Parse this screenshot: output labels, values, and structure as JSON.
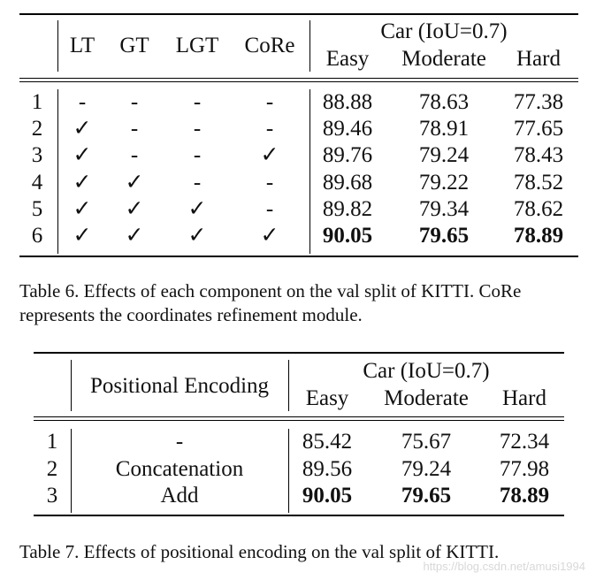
{
  "table6": {
    "headers": {
      "components": [
        "LT",
        "GT",
        "LGT",
        "CoRe"
      ],
      "group": "Car (IoU=0.7)",
      "metrics": [
        "Easy",
        "Moderate",
        "Hard"
      ]
    },
    "rows": [
      {
        "id": "1",
        "marks": [
          "-",
          "-",
          "-",
          "-"
        ],
        "values": [
          "88.88",
          "78.63",
          "77.38"
        ],
        "bold": false
      },
      {
        "id": "2",
        "marks": [
          "✓",
          "-",
          "-",
          "-"
        ],
        "values": [
          "89.46",
          "78.91",
          "77.65"
        ],
        "bold": false
      },
      {
        "id": "3",
        "marks": [
          "✓",
          "-",
          "-",
          "✓"
        ],
        "values": [
          "89.76",
          "79.24",
          "78.43"
        ],
        "bold": false
      },
      {
        "id": "4",
        "marks": [
          "✓",
          "✓",
          "-",
          "-"
        ],
        "values": [
          "89.68",
          "79.22",
          "78.52"
        ],
        "bold": false
      },
      {
        "id": "5",
        "marks": [
          "✓",
          "✓",
          "✓",
          "-"
        ],
        "values": [
          "89.82",
          "79.34",
          "78.62"
        ],
        "bold": false
      },
      {
        "id": "6",
        "marks": [
          "✓",
          "✓",
          "✓",
          "✓"
        ],
        "values": [
          "90.05",
          "79.65",
          "78.89"
        ],
        "bold": true
      }
    ],
    "caption": "Table 6. Effects of each component on the val split of KITTI. CoRe represents the coordinates refinement module."
  },
  "table7": {
    "headers": {
      "encoding": "Positional Encoding",
      "group": "Car (IoU=0.7)",
      "metrics": [
        "Easy",
        "Moderate",
        "Hard"
      ]
    },
    "rows": [
      {
        "id": "1",
        "encoding": "-",
        "values": [
          "85.42",
          "75.67",
          "72.34"
        ],
        "bold": false
      },
      {
        "id": "2",
        "encoding": "Concatenation",
        "values": [
          "89.56",
          "79.24",
          "77.98"
        ],
        "bold": false
      },
      {
        "id": "3",
        "encoding": "Add",
        "values": [
          "90.05",
          "79.65",
          "78.89"
        ],
        "bold": true
      }
    ],
    "caption": "Table 7. Effects of positional encoding on the val split of KITTI."
  },
  "watermark": "https://blog.csdn.net/amusi1994"
}
